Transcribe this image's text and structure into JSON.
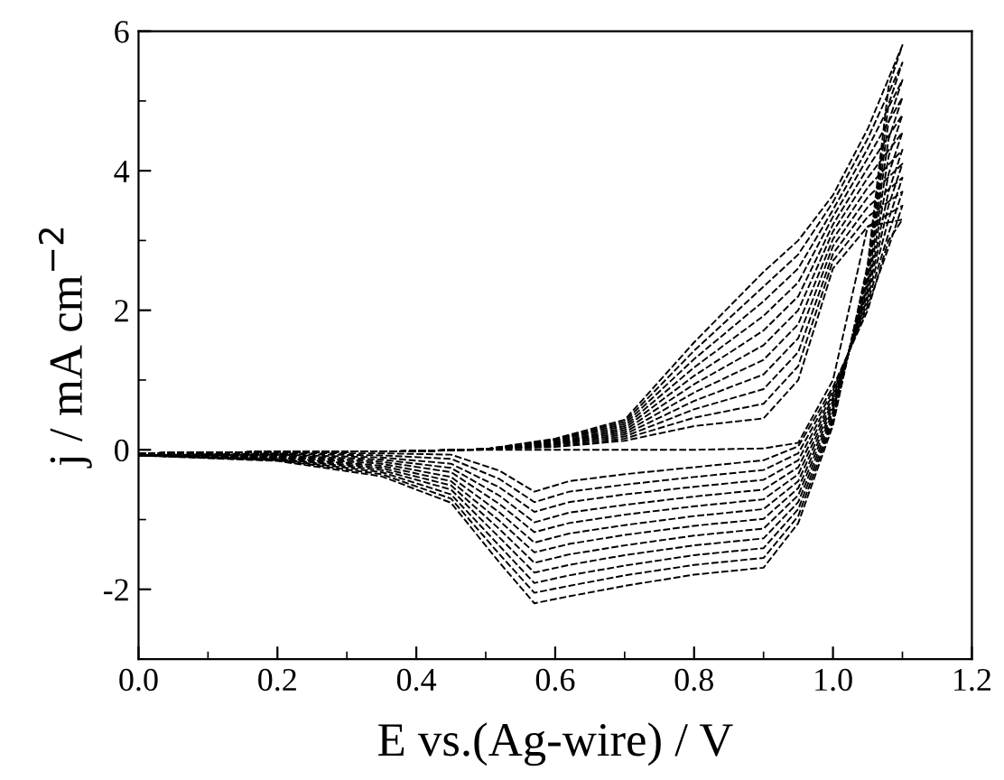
{
  "chart_data": {
    "type": "line",
    "xlabel": "E vs.(Ag-wire) / V",
    "ylabel": "j / mA cm$^{−2}$",
    "x": [
      0,
      0.2,
      0.4,
      0.5,
      0.6,
      0.7,
      0.8,
      0.9,
      0.95,
      1.0,
      1.05,
      1.1,
      1.08,
      1.05,
      1.0,
      0.95,
      0.9,
      0.8,
      0.7,
      0.62,
      0.57,
      0.52,
      0.45,
      0.35,
      0.2,
      0.0
    ],
    "xlim": [
      0,
      1.2
    ],
    "xticks": [
      {
        "value": 0,
        "label": "0.0"
      },
      0.2,
      0.4,
      0.6,
      0.8,
      {
        "value": 1,
        "label": "1.0"
      },
      1.2
    ],
    "ylim": [
      -3,
      6
    ],
    "yticks": [
      -2,
      0,
      2,
      4,
      6
    ],
    "line_style": "dashed",
    "grid": false,
    "legend": false,
    "series": [
      {
        "color": "#000000",
        "values": [
          -0.05,
          -0.03,
          -0.02,
          0.0,
          0.0,
          0.0,
          0.0,
          0.02,
          0.1,
          1.0,
          3.2,
          3.3,
          3.0,
          2.0,
          0.9,
          0.05,
          -0.15,
          -0.25,
          -0.35,
          -0.45,
          -0.6,
          -0.3,
          -0.07,
          -0.05,
          -0.05,
          -0.08
        ]
      },
      {
        "color": "#000000",
        "values": [
          -0.05,
          -0.03,
          -0.02,
          0.01,
          0.04,
          0.13,
          0.34,
          0.45,
          1.0,
          2.6,
          3.2,
          3.5,
          2.9,
          2.06,
          0.85,
          -0.05,
          -0.29,
          -0.39,
          -0.5,
          -0.6,
          -0.75,
          -0.42,
          -0.13,
          -0.08,
          -0.06,
          -0.08
        ]
      },
      {
        "color": "#000000",
        "values": [
          -0.05,
          -0.03,
          -0.02,
          0.01,
          0.05,
          0.16,
          0.46,
          0.66,
          1.2,
          2.71,
          3.34,
          3.7,
          3.1,
          2.12,
          0.8,
          -0.15,
          -0.43,
          -0.53,
          -0.64,
          -0.75,
          -0.89,
          -0.54,
          -0.2,
          -0.11,
          -0.07,
          -0.08
        ]
      },
      {
        "color": "#000000",
        "values": [
          -0.05,
          -0.03,
          -0.02,
          0.01,
          0.07,
          0.19,
          0.58,
          0.87,
          1.4,
          2.81,
          3.48,
          3.9,
          3.3,
          2.18,
          0.75,
          -0.25,
          -0.57,
          -0.67,
          -0.79,
          -0.9,
          -1.04,
          -0.66,
          -0.26,
          -0.14,
          -0.08,
          -0.08
        ]
      },
      {
        "color": "#000000",
        "values": [
          -0.05,
          -0.03,
          -0.02,
          0.01,
          0.08,
          0.22,
          0.7,
          1.08,
          1.6,
          2.92,
          3.62,
          4.1,
          3.5,
          2.24,
          0.7,
          -0.35,
          -0.71,
          -0.81,
          -0.93,
          -1.05,
          -1.18,
          -0.78,
          -0.32,
          -0.17,
          -0.09,
          -0.08
        ]
      },
      {
        "color": "#000000",
        "values": [
          -0.05,
          -0.03,
          -0.02,
          0.01,
          0.09,
          0.25,
          0.82,
          1.29,
          1.8,
          3.02,
          3.76,
          4.3,
          3.7,
          2.3,
          0.65,
          -0.45,
          -0.85,
          -0.95,
          -1.08,
          -1.2,
          -1.33,
          -0.9,
          -0.39,
          -0.2,
          -0.1,
          -0.08
        ]
      },
      {
        "color": "#000000",
        "values": [
          -0.05,
          -0.03,
          -0.02,
          0.01,
          0.1,
          0.28,
          0.94,
          1.5,
          2.0,
          3.13,
          3.9,
          4.55,
          3.95,
          2.36,
          0.6,
          -0.55,
          -0.99,
          -1.09,
          -1.22,
          -1.35,
          -1.47,
          -1.02,
          -0.45,
          -0.23,
          -0.11,
          -0.08
        ]
      },
      {
        "color": "#000000",
        "values": [
          -0.05,
          -0.03,
          -0.02,
          0.01,
          0.11,
          0.31,
          1.06,
          1.71,
          2.2,
          3.23,
          4.04,
          4.8,
          4.2,
          2.42,
          0.55,
          -0.65,
          -1.13,
          -1.23,
          -1.37,
          -1.5,
          -1.62,
          -1.14,
          -0.51,
          -0.26,
          -0.12,
          -0.08
        ]
      },
      {
        "color": "#000000",
        "values": [
          -0.05,
          -0.03,
          -0.02,
          0.01,
          0.13,
          0.34,
          1.18,
          1.92,
          2.4,
          3.34,
          4.18,
          5.05,
          4.45,
          2.48,
          0.5,
          -0.75,
          -1.27,
          -1.37,
          -1.51,
          -1.65,
          -1.76,
          -1.26,
          -0.57,
          -0.29,
          -0.13,
          -0.08
        ]
      },
      {
        "color": "#000000",
        "values": [
          -0.05,
          -0.03,
          -0.02,
          0.01,
          0.14,
          0.37,
          1.3,
          2.13,
          2.6,
          3.44,
          4.32,
          5.3,
          4.7,
          2.54,
          0.45,
          -0.85,
          -1.41,
          -1.51,
          -1.66,
          -1.8,
          -1.91,
          -1.38,
          -0.64,
          -0.32,
          -0.14,
          -0.08
        ]
      },
      {
        "color": "#000000",
        "values": [
          -0.05,
          -0.03,
          -0.02,
          0.01,
          0.15,
          0.4,
          1.42,
          2.34,
          2.8,
          3.55,
          4.46,
          5.55,
          4.95,
          2.6,
          0.4,
          -0.95,
          -1.55,
          -1.65,
          -1.8,
          -1.95,
          -2.05,
          -1.5,
          -0.7,
          -0.35,
          -0.15,
          -0.08
        ]
      },
      {
        "color": "#000000",
        "values": [
          -0.05,
          -0.03,
          -0.02,
          0.01,
          0.16,
          0.43,
          1.54,
          2.55,
          3.0,
          3.65,
          4.6,
          5.8,
          5.2,
          2.66,
          0.35,
          -1.05,
          -1.69,
          -1.79,
          -1.95,
          -2.1,
          -2.2,
          -1.62,
          -0.76,
          -0.38,
          -0.16,
          -0.08
        ]
      }
    ]
  }
}
